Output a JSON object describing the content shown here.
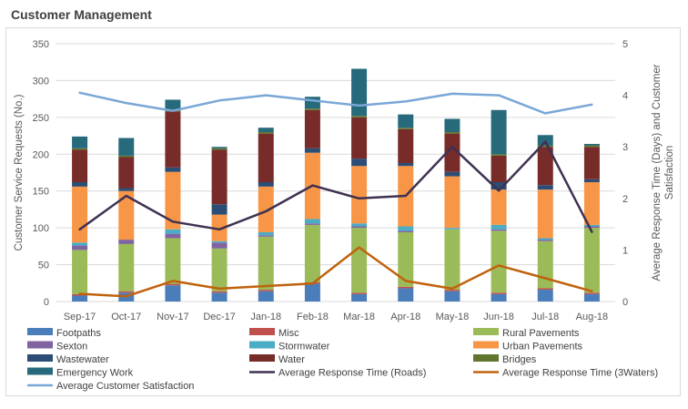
{
  "page": {
    "title": "Customer Management"
  },
  "colors": {
    "Footpaths": "#4a7ebb",
    "Misc": "#c0504d",
    "Rural Pavements": "#9bbb59",
    "Sexton": "#8064a2",
    "Stormwater": "#4bacc6",
    "Urban Pavements": "#f79646",
    "Wastewater": "#2c4d75",
    "Water": "#772c2a",
    "Bridges": "#5f7530",
    "Emergency Work": "#276a7c",
    "Average Response Time (Roads)": "#3f3151",
    "Average Response Time (3Waters)": "#c0620d",
    "Average Customer Satisfaction": "#7aa7d7"
  },
  "chart_data": {
    "type": "bar",
    "stacked": true,
    "title": "",
    "categories": [
      "Sep-17",
      "Oct-17",
      "Nov-17",
      "Dec-17",
      "Jan-18",
      "Feb-18",
      "Mar-18",
      "Apr-18",
      "May-18",
      "Jun-18",
      "Jul-18",
      "Aug-18"
    ],
    "ylabel": "Customer Service Requests (No.)",
    "y2label": "Average Response Time (Days) and Customer Satisfaction",
    "ylim": [
      0,
      350
    ],
    "yticks": [
      0,
      50,
      100,
      150,
      200,
      250,
      300,
      350
    ],
    "y2lim": [
      0,
      5
    ],
    "y2ticks": [
      0,
      1,
      2,
      3,
      4,
      5
    ],
    "grid": "horizontal",
    "legend_position": "bottom",
    "series": [
      {
        "name": "Footpaths",
        "type": "bar",
        "axis": "left",
        "values": [
          8,
          12,
          22,
          12,
          14,
          24,
          10,
          18,
          14,
          10,
          16,
          10
        ]
      },
      {
        "name": "Misc",
        "type": "bar",
        "axis": "left",
        "values": [
          2,
          2,
          2,
          2,
          2,
          2,
          2,
          2,
          2,
          2,
          2,
          2
        ]
      },
      {
        "name": "Rural Pavements",
        "type": "bar",
        "axis": "left",
        "values": [
          60,
          64,
          62,
          58,
          72,
          78,
          88,
          74,
          82,
          84,
          64,
          88
        ]
      },
      {
        "name": "Sexton",
        "type": "bar",
        "axis": "left",
        "values": [
          6,
          6,
          6,
          8,
          2,
          2,
          2,
          2,
          0,
          2,
          2,
          2
        ]
      },
      {
        "name": "Stormwater",
        "type": "bar",
        "axis": "left",
        "values": [
          4,
          0,
          6,
          2,
          4,
          6,
          4,
          6,
          2,
          6,
          2,
          2
        ]
      },
      {
        "name": "Urban Pavements",
        "type": "bar",
        "axis": "left",
        "values": [
          76,
          66,
          78,
          36,
          62,
          90,
          78,
          82,
          70,
          48,
          66,
          58
        ]
      },
      {
        "name": "Wastewater",
        "type": "bar",
        "axis": "left",
        "values": [
          6,
          4,
          6,
          14,
          6,
          6,
          10,
          4,
          6,
          10,
          6,
          4
        ]
      },
      {
        "name": "Water",
        "type": "bar",
        "axis": "left",
        "values": [
          44,
          42,
          76,
          74,
          66,
          52,
          56,
          46,
          52,
          36,
          52,
          44
        ]
      },
      {
        "name": "Bridges",
        "type": "bar",
        "axis": "left",
        "values": [
          2,
          2,
          2,
          2,
          2,
          2,
          2,
          2,
          2,
          2,
          2,
          2
        ]
      },
      {
        "name": "Emergency Work",
        "type": "bar",
        "axis": "left",
        "values": [
          16,
          24,
          14,
          2,
          6,
          16,
          64,
          18,
          18,
          60,
          14,
          2
        ]
      },
      {
        "name": "Average Response Time (Roads)",
        "type": "line",
        "axis": "right",
        "values": [
          1.4,
          2.05,
          1.55,
          1.4,
          1.75,
          2.25,
          2.0,
          2.05,
          3.0,
          2.15,
          3.1,
          1.35
        ]
      },
      {
        "name": "Average Response Time (3Waters)",
        "type": "line",
        "axis": "right",
        "values": [
          0.15,
          0.1,
          0.4,
          0.25,
          0.3,
          0.35,
          1.05,
          0.4,
          0.25,
          0.7,
          0.45,
          0.2
        ]
      },
      {
        "name": "Average Customer Satisfaction",
        "type": "line",
        "axis": "right",
        "values": [
          4.05,
          3.85,
          3.7,
          3.9,
          4.0,
          3.9,
          3.8,
          3.88,
          4.03,
          4.0,
          3.65,
          3.82
        ]
      }
    ]
  }
}
